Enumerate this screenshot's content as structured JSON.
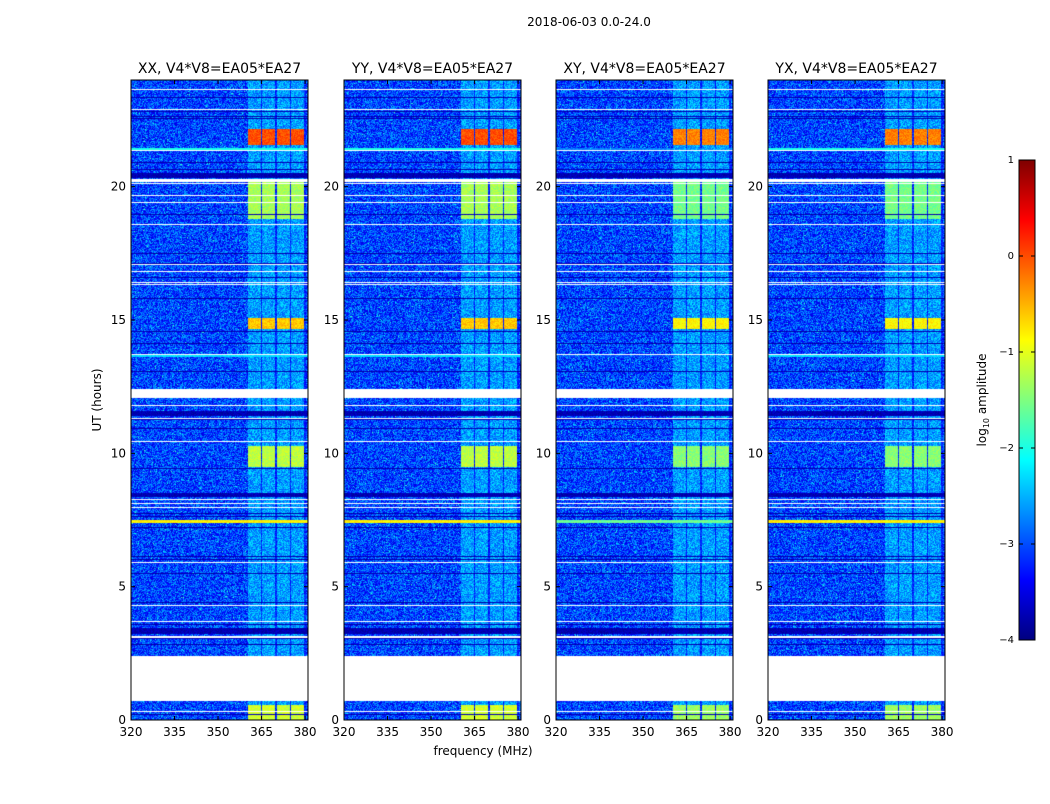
{
  "chart_data": {
    "type": "heatmap",
    "suptitle": "2018-06-03 0.0-24.0",
    "xlabel": "frequency (MHz)",
    "ylabel": "UT (hours)",
    "xlim": [
      320,
      381
    ],
    "ylim": [
      0,
      24
    ],
    "xticks": [
      320,
      335,
      350,
      365,
      380
    ],
    "yticks": [
      0,
      5,
      10,
      15,
      20
    ],
    "panels": [
      {
        "title": "XX, V4*V8=EA05*EA27",
        "pol": "XX"
      },
      {
        "title": "YY, V4*V8=EA05*EA27",
        "pol": "YY"
      },
      {
        "title": "XY, V4*V8=EA05*EA27",
        "pol": "XY"
      },
      {
        "title": "YX, V4*V8=EA05*EA27",
        "pol": "YX"
      }
    ],
    "colorbar": {
      "label": "log10 amplitude",
      "label_base": "log",
      "label_sub": "10",
      "label_rest": " amplitude",
      "range": [
        -4,
        1
      ],
      "ticks": [
        1,
        0,
        -1,
        -2,
        -3,
        -4
      ],
      "tick_labels": [
        "1",
        "0",
        "−1",
        "−2",
        "−3",
        "−4"
      ],
      "colormap": "jet",
      "colors": [
        "#00007f",
        "#0000ff",
        "#007fff",
        "#00ffff",
        "#7fff7f",
        "#ffff00",
        "#ff7f00",
        "#ff0000",
        "#7f0000"
      ]
    },
    "background_log_amplitude": -3.0,
    "signal_band_mhz": [
      360,
      380
    ],
    "signal_subbands_mhz": [
      [
        360,
        364.5
      ],
      [
        365,
        369.5
      ],
      [
        370,
        374.5
      ],
      [
        375,
        379.5
      ]
    ],
    "flagged_gaps_ut": [
      [
        0.75,
        2.4
      ],
      [
        12.1,
        12.4
      ],
      [
        20.2,
        20.3
      ]
    ],
    "bright_bursts_ut": [
      {
        "ut": [
          21.6,
          22.2
        ],
        "level": 0.0
      },
      {
        "ut": [
          18.8,
          20.2
        ],
        "level": -1.3
      },
      {
        "ut": [
          14.7,
          15.1
        ],
        "level": -0.6
      },
      {
        "ut": [
          9.5,
          10.3
        ],
        "level": -1.2
      },
      {
        "ut": [
          0.0,
          0.6
        ],
        "level": -1.1
      }
    ],
    "broadband_rfi_ut": [
      {
        "ut": 21.4,
        "level": -2.0
      },
      {
        "ut": 7.45,
        "level": -0.8
      },
      {
        "ut": 13.7,
        "level": -2.3
      }
    ]
  }
}
